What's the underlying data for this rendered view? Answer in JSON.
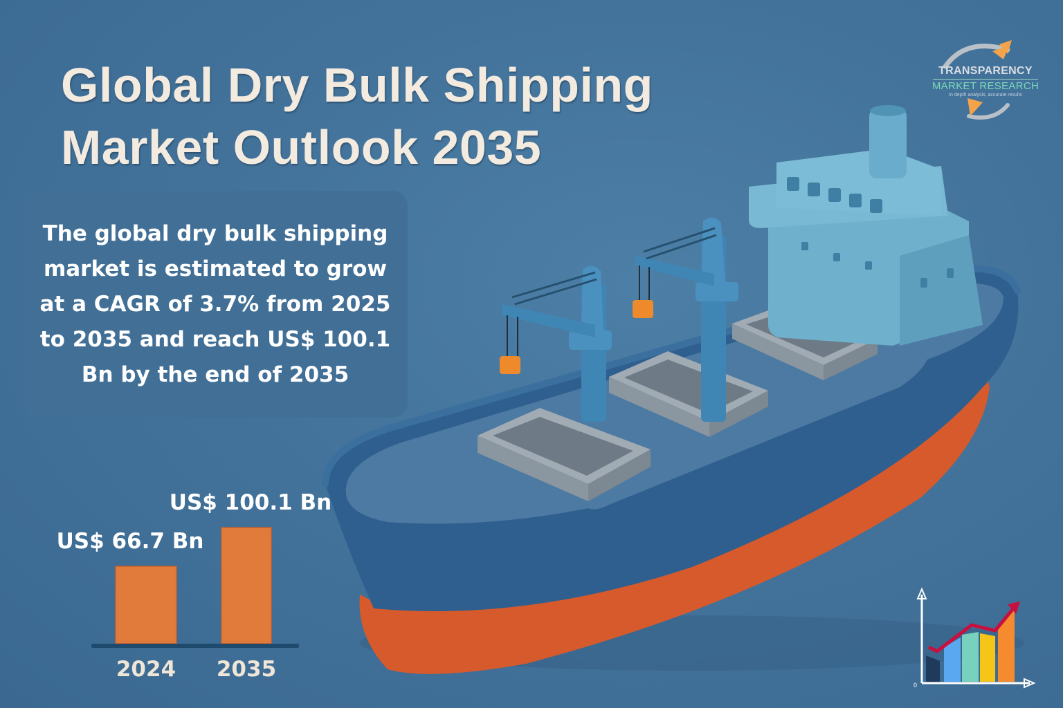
{
  "title": {
    "line1": "Global Dry Bulk Shipping",
    "line2": "Market Outlook 2035"
  },
  "summary": {
    "text": "The global dry bulk shipping market is estimated to grow at a CAGR of 3.7% from 2025 to 2035 and reach US$ 100.1 Bn by the end of 2035"
  },
  "logo": {
    "line1": "TRANSPARENCY",
    "line2": "MARKET RESEARCH",
    "tagline": "In depth analysis, accurate results"
  },
  "growth_icon": {
    "axis_origin_label": "0",
    "bar_colors": [
      "#1f3a5a",
      "#5aa8f0",
      "#78d1bd",
      "#f5c518",
      "#f68a2e"
    ],
    "trend_color": "#c8103e"
  },
  "colors": {
    "background": "#43739b",
    "bar": "#e07b3c",
    "baseline": "#1e4a6e",
    "hull_upper": "#2f5f8f",
    "hull_lower": "#d65a2c",
    "superstructure": "#6fb0cc",
    "hatch": "#8e99a3",
    "crane": "#3f86b4",
    "hook": "#ef8a2c"
  },
  "chart_data": {
    "type": "bar",
    "title": "",
    "xlabel": "",
    "ylabel": "",
    "categories": [
      "2024",
      "2035"
    ],
    "values": [
      66.7,
      100.1
    ],
    "value_labels": [
      "US$ 66.7 Bn",
      "US$ 100.1 Bn"
    ],
    "units": "US$ Bn",
    "ylim": [
      0,
      100.1
    ],
    "grid": false,
    "legend": "none"
  }
}
